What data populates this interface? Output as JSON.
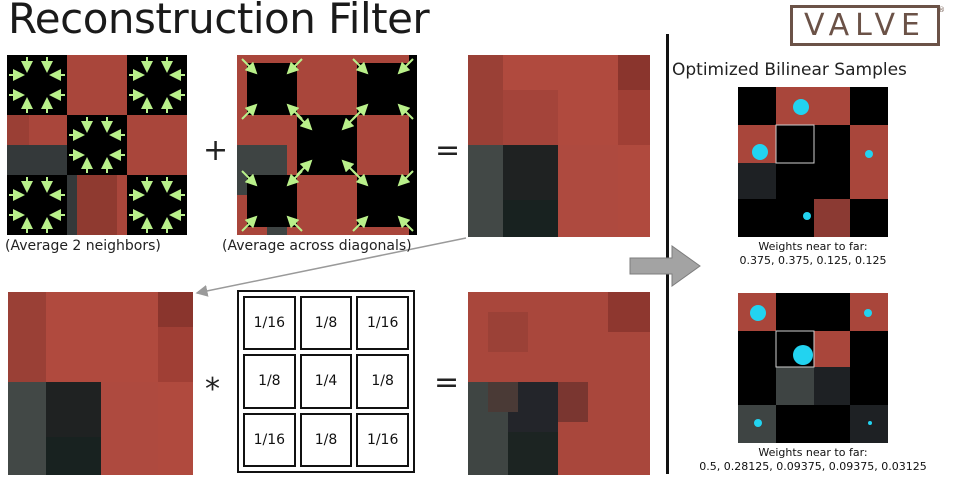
{
  "title": "Reconstruction Filter",
  "logo": "VALVE",
  "logo_mark": "®",
  "captions": {
    "average_neighbors": "(Average 2 neighbors)",
    "average_diagonals": "(Average across diagonals)"
  },
  "operators": {
    "plus": "+",
    "equals": "=",
    "times": "*"
  },
  "kernel": {
    "cells": [
      "1/16",
      "1/8",
      "1/16",
      "1/8",
      "1/4",
      "1/8",
      "1/16",
      "1/8",
      "1/16"
    ]
  },
  "right_panel": {
    "title": "Optimized Bilinear Samples",
    "sample1": {
      "label": "Weights near to far:",
      "values": "0.375, 0.375, 0.125, 0.125"
    },
    "sample2": {
      "label": "Weights near to far:",
      "values": "0.5, 0.28125, 0.09375, 0.09375, 0.03125"
    }
  },
  "colors": {
    "red_tile": "#b0493d",
    "dark_red_tile": "#8f3a30",
    "black": "#000000",
    "gray_tile": "#3e4443",
    "dark_gray_tile": "#1e2122",
    "arrow_green": "#b9f08a",
    "sample_cyan": "#22d3f0",
    "arrow_gray": "#9a9a9a"
  }
}
